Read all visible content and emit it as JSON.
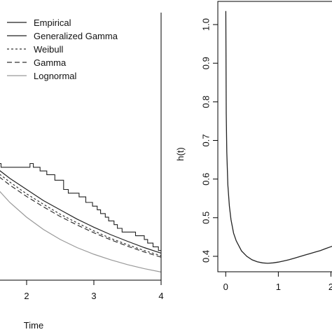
{
  "chart_data": [
    {
      "type": "line",
      "xlabel": "Time",
      "ylabel": "",
      "xlim": [
        1.5,
        4
      ],
      "ylim": [
        0.3,
        1.0
      ],
      "x_ticks": [
        {
          "value": 2,
          "label": "2"
        },
        {
          "value": 3,
          "label": "3"
        },
        {
          "value": 4,
          "label": "4"
        }
      ],
      "legend": {
        "position": "top-left",
        "entries": [
          {
            "label": "Empirical",
            "color": "#222222",
            "dash": "solid"
          },
          {
            "label": "Generalized Gamma",
            "color": "#222222",
            "dash": "solid"
          },
          {
            "label": "Weibull",
            "color": "#333333",
            "dash": "short-dash"
          },
          {
            "label": "Gamma",
            "color": "#333333",
            "dash": "long-dash"
          },
          {
            "label": "Lognormal",
            "color": "#999999",
            "dash": "solid"
          }
        ]
      },
      "series": [
        {
          "name": "Empirical",
          "type": "step",
          "color": "#222222",
          "x": [
            1.5,
            1.62,
            1.62,
            2.05,
            2.05,
            2.1,
            2.1,
            2.2,
            2.2,
            2.3,
            2.3,
            2.42,
            2.42,
            2.55,
            2.55,
            2.62,
            2.62,
            2.78,
            2.78,
            2.88,
            2.88,
            2.98,
            2.98,
            3.05,
            3.05,
            3.1,
            3.1,
            3.17,
            3.17,
            3.22,
            3.22,
            3.3,
            3.3,
            3.35,
            3.35,
            3.42,
            3.42,
            3.62,
            3.62,
            3.75,
            3.75,
            3.8,
            3.8,
            3.88,
            3.88,
            3.96,
            3.96,
            4.0
          ],
          "y": [
            0.615,
            0.615,
            0.605,
            0.605,
            0.615,
            0.615,
            0.605,
            0.605,
            0.595,
            0.595,
            0.585,
            0.585,
            0.57,
            0.57,
            0.545,
            0.545,
            0.535,
            0.535,
            0.525,
            0.525,
            0.51,
            0.51,
            0.5,
            0.5,
            0.49,
            0.49,
            0.48,
            0.48,
            0.47,
            0.47,
            0.46,
            0.46,
            0.45,
            0.45,
            0.44,
            0.44,
            0.43,
            0.43,
            0.42,
            0.42,
            0.41,
            0.41,
            0.4,
            0.4,
            0.39,
            0.39,
            0.38,
            0.38
          ]
        },
        {
          "name": "Generalized Gamma",
          "type": "line",
          "color": "#222222",
          "dash": "solid",
          "x": [
            1.5,
            1.75,
            2.0,
            2.25,
            2.5,
            2.75,
            3.0,
            3.25,
            3.5,
            3.75,
            4.0
          ],
          "y": [
            0.61,
            0.575,
            0.545,
            0.515,
            0.49,
            0.465,
            0.443,
            0.423,
            0.405,
            0.388,
            0.373
          ]
        },
        {
          "name": "Weibull",
          "type": "line",
          "color": "#333333",
          "dash": "short-dash",
          "x": [
            1.5,
            1.75,
            2.0,
            2.25,
            2.5,
            2.75,
            3.0,
            3.25,
            3.5,
            3.75,
            4.0
          ],
          "y": [
            0.6,
            0.565,
            0.533,
            0.505,
            0.478,
            0.455,
            0.433,
            0.413,
            0.396,
            0.38,
            0.366
          ]
        },
        {
          "name": "Gamma",
          "type": "line",
          "color": "#333333",
          "dash": "long-dash",
          "x": [
            1.5,
            1.75,
            2.0,
            2.25,
            2.5,
            2.75,
            3.0,
            3.25,
            3.5,
            3.75,
            4.0
          ],
          "y": [
            0.592,
            0.557,
            0.526,
            0.498,
            0.472,
            0.449,
            0.428,
            0.409,
            0.392,
            0.376,
            0.362
          ]
        },
        {
          "name": "Lognormal",
          "type": "line",
          "color": "#999999",
          "dash": "solid",
          "x": [
            1.5,
            1.75,
            2.0,
            2.25,
            2.5,
            2.75,
            3.0,
            3.25,
            3.5,
            3.75,
            4.0
          ],
          "y": [
            0.56,
            0.51,
            0.47,
            0.437,
            0.41,
            0.388,
            0.37,
            0.355,
            0.342,
            0.331,
            0.322
          ]
        }
      ]
    },
    {
      "type": "line",
      "xlabel": "",
      "ylabel": "h(t)",
      "xlim": [
        -0.15,
        2.1
      ],
      "ylim": [
        0.36,
        1.06
      ],
      "x_ticks": [
        {
          "value": 0,
          "label": "0"
        },
        {
          "value": 1,
          "label": "1"
        },
        {
          "value": 2,
          "label": "2"
        }
      ],
      "y_ticks": [
        {
          "value": 0.4,
          "label": "0.4"
        },
        {
          "value": 0.5,
          "label": "0.5"
        },
        {
          "value": 0.6,
          "label": "0.6"
        },
        {
          "value": 0.7,
          "label": "0.7"
        },
        {
          "value": 0.8,
          "label": "0.8"
        },
        {
          "value": 0.9,
          "label": "0.9"
        },
        {
          "value": 1.0,
          "label": "1.0"
        }
      ],
      "series": [
        {
          "name": "h(t)",
          "type": "line",
          "color": "#222222",
          "dash": "solid",
          "x": [
            0.002,
            0.01,
            0.02,
            0.04,
            0.07,
            0.1,
            0.15,
            0.2,
            0.3,
            0.4,
            0.5,
            0.6,
            0.7,
            0.8,
            0.9,
            1.0,
            1.1,
            1.2,
            1.3,
            1.4,
            1.5,
            1.6,
            1.7,
            1.8,
            1.9,
            2.0,
            2.1
          ],
          "y": [
            1.035,
            0.77,
            0.67,
            0.585,
            0.53,
            0.495,
            0.46,
            0.44,
            0.414,
            0.4,
            0.391,
            0.386,
            0.383,
            0.382,
            0.383,
            0.385,
            0.388,
            0.391,
            0.395,
            0.399,
            0.403,
            0.407,
            0.411,
            0.415,
            0.42,
            0.425,
            0.43
          ]
        }
      ]
    }
  ]
}
